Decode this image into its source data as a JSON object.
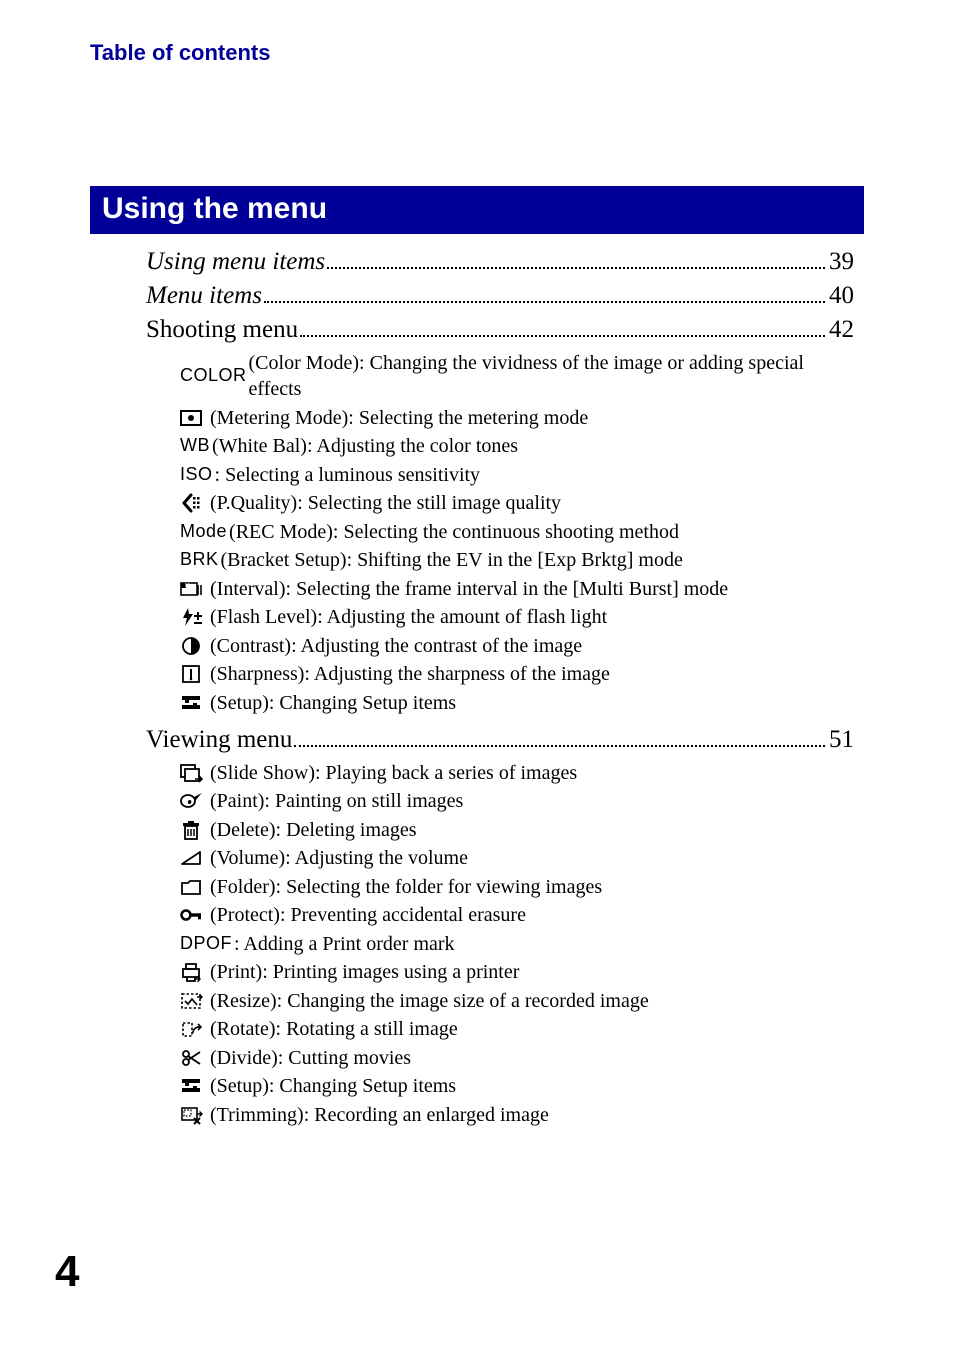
{
  "header": {
    "label": "Table of contents"
  },
  "section": {
    "title": "Using the menu"
  },
  "toc": [
    {
      "key": "using_menu_items",
      "title": "Using menu items",
      "italic": true,
      "page": "39"
    },
    {
      "key": "menu_items",
      "title": "Menu items",
      "italic": true,
      "page": "40"
    },
    {
      "key": "shooting_menu",
      "title": "Shooting menu",
      "italic": false,
      "page": "42",
      "subitems": [
        {
          "icon": "text",
          "prefix": "COLOR",
          "text": " (Color Mode): Changing the vividness of the image or adding special effects"
        },
        {
          "icon": "metering",
          "prefix": "",
          "text": " (Metering Mode): Selecting the metering mode"
        },
        {
          "icon": "text",
          "prefix": "WB",
          "text": " (White Bal): Adjusting the color tones"
        },
        {
          "icon": "text",
          "prefix": "ISO",
          "text": ": Selecting a luminous sensitivity"
        },
        {
          "icon": "pquality",
          "prefix": "",
          "text": " (P.Quality): Selecting the still image quality"
        },
        {
          "icon": "text",
          "prefix": "Mode",
          "text": " (REC Mode): Selecting the continuous shooting method"
        },
        {
          "icon": "text",
          "prefix": "BRK",
          "text": " (Bracket Setup): Shifting the EV in the [Exp Brktg] mode"
        },
        {
          "icon": "interval",
          "prefix": "",
          "text": " (Interval): Selecting the frame interval in the [Multi Burst] mode"
        },
        {
          "icon": "flashlevel",
          "prefix": "",
          "text": " (Flash Level): Adjusting the amount of flash light"
        },
        {
          "icon": "contrast",
          "prefix": "",
          "text": " (Contrast): Adjusting the contrast of the image"
        },
        {
          "icon": "sharpness",
          "prefix": "",
          "text": " (Sharpness): Adjusting the sharpness of the image"
        },
        {
          "icon": "setup",
          "prefix": "",
          "text": " (Setup): Changing Setup items"
        }
      ]
    },
    {
      "key": "viewing_menu",
      "title": "Viewing menu ",
      "italic": false,
      "page": "51",
      "subitems": [
        {
          "icon": "slideshow",
          "prefix": "",
          "text": " (Slide Show): Playing back a series of images"
        },
        {
          "icon": "paint",
          "prefix": "",
          "text": "  (Paint): Painting on still images"
        },
        {
          "icon": "delete",
          "prefix": "",
          "text": "  (Delete): Deleting images"
        },
        {
          "icon": "volume",
          "prefix": "",
          "text": " (Volume): Adjusting the volume"
        },
        {
          "icon": "folder",
          "prefix": "",
          "text": " (Folder): Selecting the folder for viewing images"
        },
        {
          "icon": "protect",
          "prefix": "",
          "text": " (Protect): Preventing accidental erasure"
        },
        {
          "icon": "text",
          "prefix": "DPOF",
          "text": ": Adding a Print order mark"
        },
        {
          "icon": "print",
          "prefix": "",
          "text": " (Print): Printing images using a printer"
        },
        {
          "icon": "resize",
          "prefix": "",
          "text": " (Resize): Changing the image size of a recorded image"
        },
        {
          "icon": "rotate",
          "prefix": "",
          "text": " (Rotate): Rotating a still image"
        },
        {
          "icon": "divide",
          "prefix": "",
          "text": " (Divide): Cutting movies"
        },
        {
          "icon": "setup",
          "prefix": "",
          "text": " (Setup): Changing Setup items"
        },
        {
          "icon": "trimming",
          "prefix": "",
          "text": "  (Trimming): Recording an enlarged image"
        }
      ]
    }
  ],
  "page_number": "4",
  "colors": {
    "brand_blue": "#000099",
    "text": "#000000",
    "bg": "#ffffff"
  },
  "fonts": {
    "serif": "Times New Roman",
    "sans": "Arial",
    "header_size_pt": 16,
    "section_size_pt": 22,
    "toc_title_pt": 19,
    "subitem_pt": 15,
    "pagenum_pt": 33
  }
}
